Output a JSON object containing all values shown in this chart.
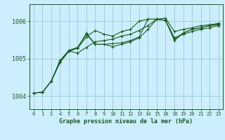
{
  "title": "Graphe pression niveau de la mer (hPa)",
  "bg_color": "#cceeff",
  "line_color": "#1a5c1a",
  "grid_color": "#99cccc",
  "x_ticks": [
    0,
    1,
    2,
    4,
    5,
    6,
    7,
    8,
    9,
    10,
    11,
    12,
    13,
    14,
    15,
    16,
    18,
    19,
    20,
    21,
    22,
    23
  ],
  "x_positions": [
    0,
    1,
    2,
    3,
    4,
    5,
    6,
    7,
    8,
    9,
    10,
    11,
    12,
    13,
    14,
    15,
    16,
    17,
    18,
    19,
    20,
    21
  ],
  "ylim": [
    1003.65,
    1006.45
  ],
  "yticks": [
    1004,
    1005,
    1006
  ],
  "series": [
    [
      1004.08,
      1004.1,
      1004.4,
      1004.92,
      1005.2,
      1005.15,
      1005.3,
      1005.45,
      1005.48,
      1005.52,
      1005.6,
      1005.65,
      1005.75,
      1005.88,
      1006.05,
      1006.08,
      1005.72,
      1005.78,
      1005.82,
      1005.88,
      1005.9,
      1005.94
    ],
    [
      1004.08,
      1004.1,
      1004.4,
      1004.95,
      1005.22,
      1005.3,
      1005.65,
      1005.38,
      1005.38,
      1005.4,
      1005.42,
      1005.48,
      1005.58,
      1006.05,
      1006.05,
      1006.02,
      1005.55,
      1005.65,
      1005.72,
      1005.78,
      1005.82,
      1005.88
    ],
    [
      1004.08,
      1004.1,
      1004.4,
      1004.9,
      1005.2,
      1005.28,
      1005.58,
      1005.75,
      1005.65,
      1005.6,
      1005.72,
      1005.78,
      1006.0,
      1006.05,
      1006.05,
      1006.02,
      1005.52,
      1005.68,
      1005.78,
      1005.82,
      1005.88,
      1005.92
    ],
    [
      1004.08,
      1004.1,
      1004.4,
      1004.9,
      1005.2,
      1005.28,
      1005.68,
      1005.38,
      1005.38,
      1005.32,
      1005.38,
      1005.45,
      1005.55,
      1005.78,
      1006.05,
      1006.02,
      1005.48,
      1005.68,
      1005.78,
      1005.82,
      1005.88,
      1005.9
    ]
  ]
}
